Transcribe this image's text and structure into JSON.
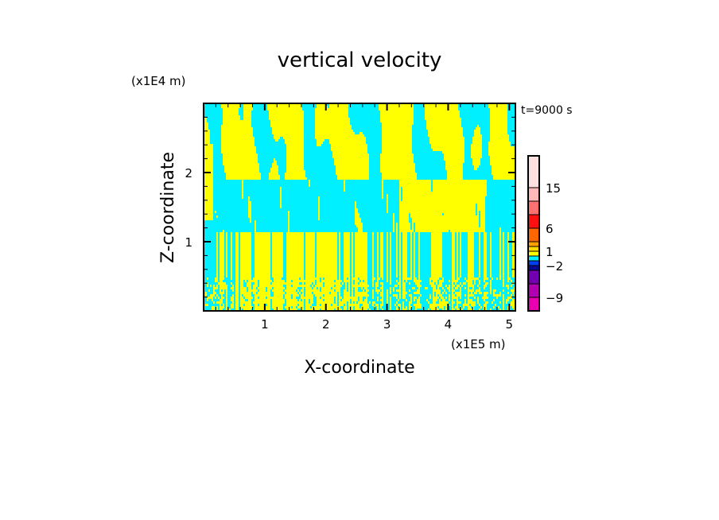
{
  "chart_data": {
    "type": "heatmap",
    "title": "vertical velocity",
    "xlabel": "X-coordinate",
    "ylabel": "Z-coordinate",
    "x_unit_label": "(x1E5 m)",
    "y_unit_label": "(x1E4 m)",
    "time_label": "t=9000 s",
    "xlim": [
      0,
      5.1
    ],
    "ylim": [
      0,
      3.0
    ],
    "x_ticks": [
      1,
      2,
      3,
      4,
      5
    ],
    "x_tick_labels": [
      "1",
      "2",
      "3",
      "4",
      "5"
    ],
    "y_ticks": [
      1,
      2
    ],
    "y_tick_labels": [
      "1",
      "2"
    ],
    "grid": false,
    "dominant_value_ranges": [
      [
        -1,
        0
      ],
      [
        0,
        1
      ]
    ],
    "colorbar": {
      "placement": "right",
      "tick_values": [
        15,
        6,
        1,
        -2,
        -9
      ],
      "tick_labels": [
        "15",
        "6",
        "1",
        "−2",
        "−9"
      ],
      "segments": [
        {
          "from": -12,
          "to": -9,
          "color": "#e800b0"
        },
        {
          "from": -9,
          "to": -6,
          "color": "#b000b0"
        },
        {
          "from": -6,
          "to": -3,
          "color": "#7000b0"
        },
        {
          "from": -3,
          "to": -2,
          "color": "#0a0a90"
        },
        {
          "from": -2,
          "to": -1,
          "color": "#0040f0"
        },
        {
          "from": -1,
          "to": 0,
          "color": "#00f0ff"
        },
        {
          "from": 0,
          "to": 1,
          "color": "#ffff00"
        },
        {
          "from": 1,
          "to": 2,
          "color": "#ffd800"
        },
        {
          "from": 2,
          "to": 3,
          "color": "#ffa000"
        },
        {
          "from": 3,
          "to": 6,
          "color": "#ff6600"
        },
        {
          "from": 6,
          "to": 9,
          "color": "#ff1010"
        },
        {
          "from": 9,
          "to": 12,
          "color": "#ff7070"
        },
        {
          "from": 12,
          "to": 15,
          "color": "#ffb8b8"
        },
        {
          "from": 15,
          "to": 22,
          "color": "#ffe0e0"
        }
      ]
    }
  }
}
